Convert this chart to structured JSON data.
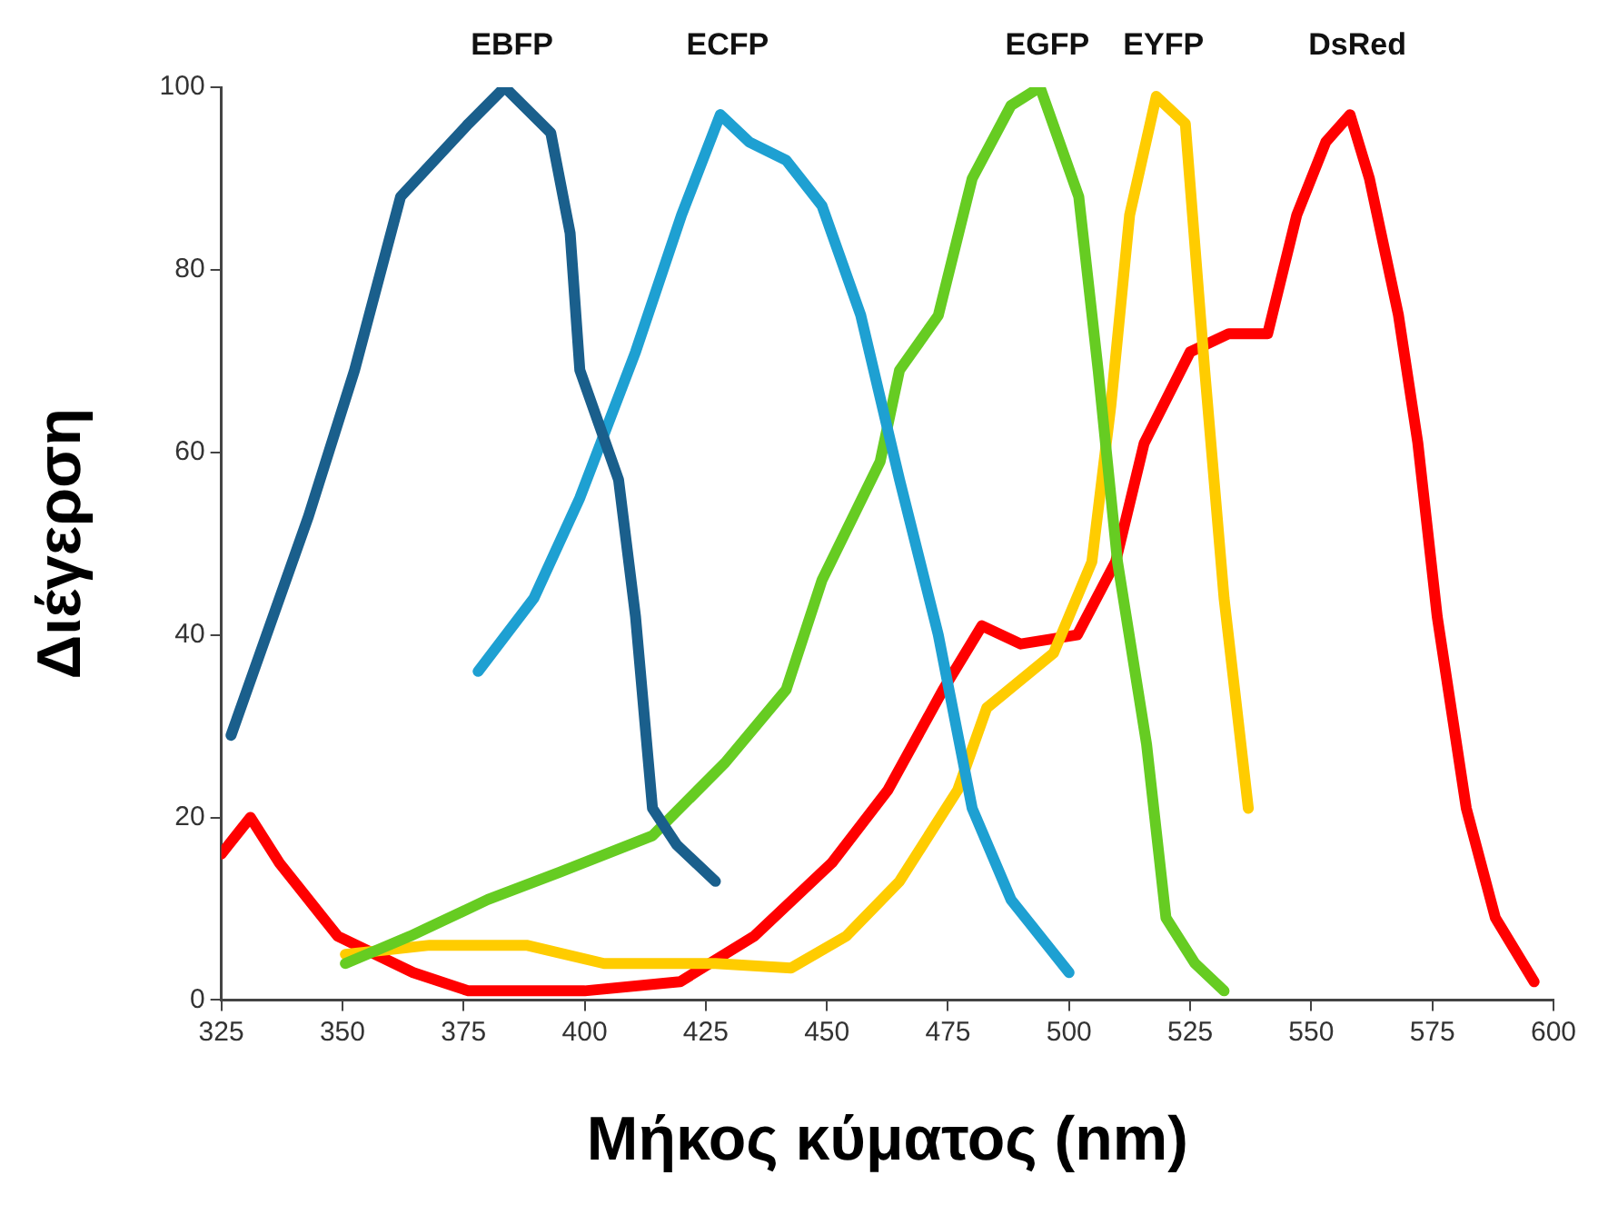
{
  "chart_data": {
    "type": "line",
    "xlabel": "Μήκος κύματος (nm)",
    "ylabel": "Διέγερση",
    "xlim": [
      325,
      600
    ],
    "xticks": [
      325,
      350,
      375,
      400,
      425,
      450,
      475,
      500,
      525,
      550,
      575,
      600
    ],
    "ylim": [
      0,
      100
    ],
    "yticks": [
      0,
      20,
      40,
      60,
      80,
      100
    ],
    "grid": false,
    "legend": false,
    "marker": "none",
    "line_style": "solid",
    "series": [
      {
        "name": "EBFP",
        "color": "#1a5f8c",
        "x": [
          327,
          333,
          343,
          352.5,
          362,
          376,
          383.5,
          393,
          397,
          399,
          407,
          410.5,
          414,
          419,
          427
        ],
        "values": [
          29,
          38,
          53,
          69,
          88,
          96,
          100,
          95,
          84,
          69,
          57,
          42,
          21,
          17,
          13
        ]
      },
      {
        "name": "ECFP",
        "color": "#1ea0d2",
        "x": [
          378,
          389.5,
          399,
          410.5,
          420,
          428,
          434,
          441.6,
          449,
          457,
          465,
          473,
          480,
          488,
          500
        ],
        "values": [
          36,
          44,
          55,
          71,
          86,
          97,
          94,
          92,
          87,
          75,
          57,
          40,
          21,
          11,
          3
        ]
      },
      {
        "name": "EGFP",
        "color": "#66cc22",
        "x": [
          350.6,
          364,
          380,
          394.8,
          414,
          429,
          441.6,
          449,
          461,
          465,
          473,
          480,
          488,
          494,
          502,
          506,
          510,
          516,
          520,
          526,
          532
        ],
        "values": [
          4,
          7,
          11,
          14,
          18,
          26,
          34,
          46,
          59,
          69,
          75,
          90,
          98,
          100,
          88,
          69,
          48,
          28,
          9,
          4,
          1
        ]
      },
      {
        "name": "EYFP",
        "color": "#ffcc00",
        "x": [
          350.6,
          368,
          388,
          404,
          427,
          442.6,
          454,
          465,
          477,
          483,
          496.8,
          504.7,
          508.6,
          512.5,
          518,
          524,
          528,
          532,
          537
        ],
        "values": [
          5,
          6,
          6,
          4,
          4,
          3.5,
          7,
          13,
          23,
          32,
          38,
          48,
          65,
          86,
          99,
          96,
          69,
          44,
          21
        ]
      },
      {
        "name": "DsRed",
        "color": "#ff0000",
        "x": [
          325,
          331,
          337,
          349,
          364.6,
          376,
          400,
          419.7,
          435,
          451,
          462.6,
          474,
          482,
          490,
          501.7,
          509.6,
          515.5,
          525,
          533,
          541,
          547,
          553,
          558,
          562,
          568,
          572,
          576,
          582,
          588,
          596
        ],
        "values": [
          16,
          20,
          15,
          7,
          3,
          1,
          1,
          2,
          7,
          15,
          23,
          34,
          41,
          39,
          40,
          48,
          61,
          71,
          73,
          73,
          86,
          94,
          97,
          90,
          75,
          61,
          42,
          21,
          9,
          2
        ]
      }
    ]
  }
}
